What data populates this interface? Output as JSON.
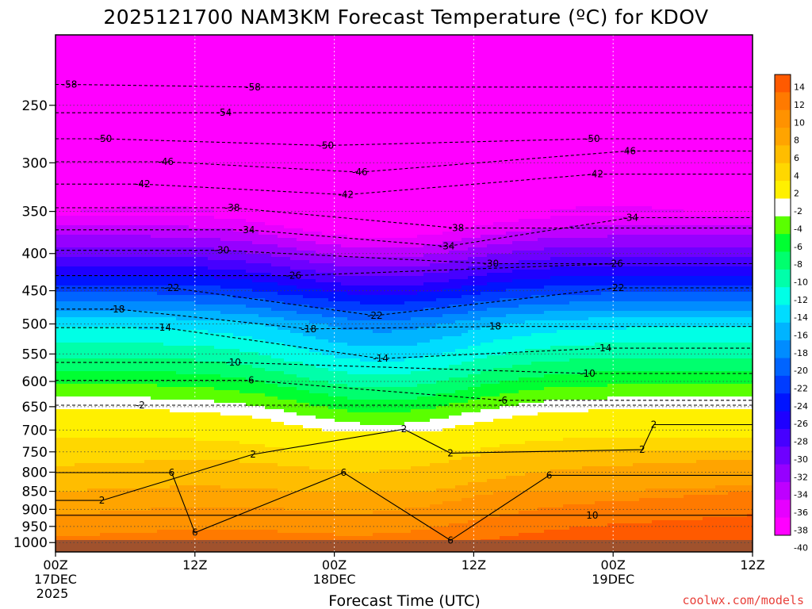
{
  "chart_data": {
    "type": "heatmap",
    "title": "2025121700 NAM3KM Forecast Temperature (ºC) for KDOV",
    "xlabel": "Forecast Time (UTC)",
    "ylabel": "",
    "credit": "coolwx.com/models",
    "x_axis": {
      "range_hours": [
        0,
        60
      ],
      "ticks": [
        {
          "hour": 0,
          "label": "00Z",
          "sub": "17DEC",
          "sub2": "2025"
        },
        {
          "hour": 12,
          "label": "12Z",
          "sub": "",
          "sub2": ""
        },
        {
          "hour": 24,
          "label": "00Z",
          "sub": "18DEC",
          "sub2": ""
        },
        {
          "hour": 36,
          "label": "12Z",
          "sub": "",
          "sub2": ""
        },
        {
          "hour": 48,
          "label": "00Z",
          "sub": "19DEC",
          "sub2": ""
        },
        {
          "hour": 60,
          "label": "12Z",
          "sub": "",
          "sub2": ""
        }
      ]
    },
    "y_axis": {
      "scale": "log",
      "range_hPa": [
        1030,
        200
      ],
      "ticks": [
        250,
        300,
        350,
        400,
        450,
        500,
        550,
        600,
        650,
        700,
        750,
        800,
        850,
        900,
        950,
        1000
      ]
    },
    "colorbar": {
      "labels": [
        "14",
        "12",
        "10",
        "8",
        "6",
        "4",
        "2",
        "-2",
        "-4",
        "-6",
        "-8",
        "-10",
        "-12",
        "-14",
        "-16",
        "-18",
        "-20",
        "-22",
        "-24",
        "-26",
        "-28",
        "-30",
        "-32",
        "-34",
        "-36",
        "-38",
        "-40"
      ],
      "colors": [
        "#ff5a00",
        "#ff7a00",
        "#ff9200",
        "#ffa400",
        "#ffbd00",
        "#ffd700",
        "#fff000",
        "#ffffff",
        "#5aff00",
        "#00ff32",
        "#00ff6e",
        "#00ffaa",
        "#00ffe6",
        "#00dcff",
        "#00b4ff",
        "#008cff",
        "#0064ff",
        "#003cff",
        "#0014ff",
        "#1e00ff",
        "#4600ff",
        "#6e00ff",
        "#9600ff",
        "#be00ff",
        "#e600ff",
        "#ff00ff"
      ]
    },
    "contour_labels": [
      {
        "text": "-58",
        "t": 1.2,
        "p": 234
      },
      {
        "text": "-58",
        "t": 17.0,
        "p": 236
      },
      {
        "text": "-54",
        "t": 14.5,
        "p": 256
      },
      {
        "text": "-50",
        "t": 4.2,
        "p": 278
      },
      {
        "text": "-50",
        "t": 23.3,
        "p": 284
      },
      {
        "text": "-50",
        "t": 46.2,
        "p": 278
      },
      {
        "text": "-46",
        "t": 9.5,
        "p": 299
      },
      {
        "text": "-46",
        "t": 26.2,
        "p": 309
      },
      {
        "text": "-46",
        "t": 49.3,
        "p": 289
      },
      {
        "text": "-42",
        "t": 7.5,
        "p": 321
      },
      {
        "text": "-42",
        "t": 25.0,
        "p": 332
      },
      {
        "text": "-42",
        "t": 46.5,
        "p": 311
      },
      {
        "text": "-38",
        "t": 15.2,
        "p": 346
      },
      {
        "text": "-38",
        "t": 34.5,
        "p": 369
      },
      {
        "text": "-34",
        "t": 16.5,
        "p": 371
      },
      {
        "text": "-34",
        "t": 33.7,
        "p": 391
      },
      {
        "text": "-34",
        "t": 49.5,
        "p": 357
      },
      {
        "text": "-30",
        "t": 14.3,
        "p": 396
      },
      {
        "text": "-30",
        "t": 37.5,
        "p": 413
      },
      {
        "text": "-26",
        "t": 20.5,
        "p": 429
      },
      {
        "text": "-26",
        "t": 48.2,
        "p": 413
      },
      {
        "text": "-22",
        "t": 10.0,
        "p": 446
      },
      {
        "text": "-22",
        "t": 27.5,
        "p": 487
      },
      {
        "text": "-22",
        "t": 48.3,
        "p": 446
      },
      {
        "text": "-18",
        "t": 5.3,
        "p": 477
      },
      {
        "text": "-18",
        "t": 21.8,
        "p": 508
      },
      {
        "text": "-18",
        "t": 37.7,
        "p": 504
      },
      {
        "text": "-14",
        "t": 9.3,
        "p": 506
      },
      {
        "text": "-14",
        "t": 28.0,
        "p": 558
      },
      {
        "text": "-14",
        "t": 47.2,
        "p": 540
      },
      {
        "text": "-10",
        "t": 15.3,
        "p": 565
      },
      {
        "text": "-10",
        "t": 45.8,
        "p": 585
      },
      {
        "text": "-6",
        "t": 16.7,
        "p": 598
      },
      {
        "text": "-6",
        "t": 38.5,
        "p": 637
      },
      {
        "text": "-2",
        "t": 7.3,
        "p": 647
      },
      {
        "text": "2",
        "t": 30.0,
        "p": 698
      },
      {
        "text": "2",
        "t": 51.5,
        "p": 688
      },
      {
        "text": "2",
        "t": 17.0,
        "p": 756
      },
      {
        "text": "2",
        "t": 34.0,
        "p": 753
      },
      {
        "text": "2",
        "t": 50.5,
        "p": 745
      },
      {
        "text": "2",
        "t": 4.0,
        "p": 875
      },
      {
        "text": "6",
        "t": 10.0,
        "p": 801
      },
      {
        "text": "6",
        "t": 24.8,
        "p": 801
      },
      {
        "text": "6",
        "t": 42.5,
        "p": 808
      },
      {
        "text": "6",
        "t": 12.0,
        "p": 969
      },
      {
        "text": "6",
        "t": 34.0,
        "p": 993
      },
      {
        "text": "10",
        "t": 46.2,
        "p": 917
      }
    ]
  }
}
